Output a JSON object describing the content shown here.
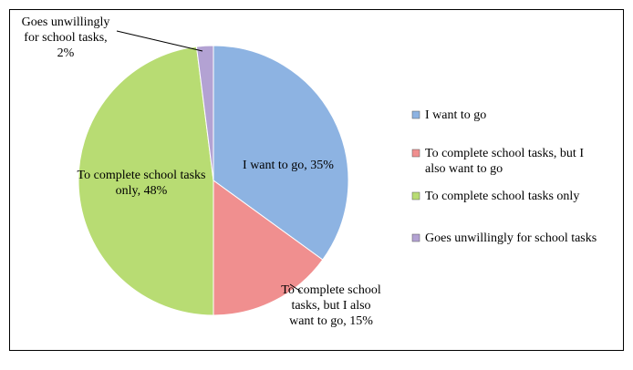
{
  "chart_data": {
    "type": "pie",
    "categories": [
      "I want to go",
      "To complete school tasks, but I also want to go",
      "To complete school tasks only",
      "Goes unwillingly for school tasks"
    ],
    "values": [
      35,
      15,
      48,
      2
    ],
    "value_labels": [
      "I want to go, 35%",
      "To complete school tasks, but I also want to go, 15%",
      "To complete school tasks only, 48%",
      "Goes unwillingly for school tasks, 2%"
    ],
    "colors": [
      "#8db3e2",
      "#f08f8f",
      "#b8dc73",
      "#b3a2d3"
    ],
    "legend": "right"
  }
}
